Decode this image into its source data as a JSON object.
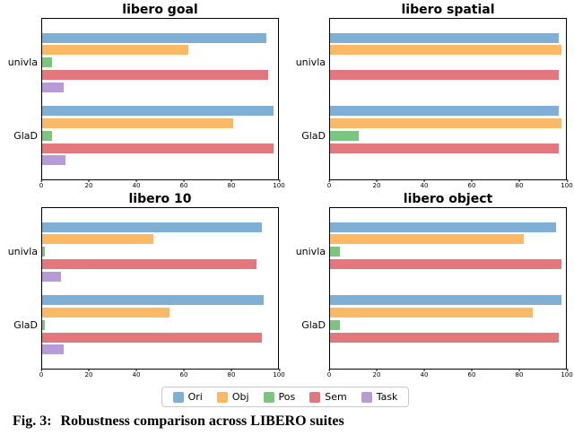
{
  "legend": {
    "entries": [
      {
        "label": "Ori",
        "color": "#7FAFD4"
      },
      {
        "label": "Obj",
        "color": "#FBB965"
      },
      {
        "label": "Pos",
        "color": "#7CC57E"
      },
      {
        "label": "Sem",
        "color": "#E2777D"
      },
      {
        "label": "Task",
        "color": "#B79BD8"
      }
    ]
  },
  "caption": {
    "fig_label": "Fig. 3:",
    "text": "Robustness comparison across LIBERO suites"
  },
  "chart_data": [
    {
      "type": "bar",
      "orientation": "horizontal",
      "title": "libero goal",
      "categories": [
        "univla",
        "GlaD"
      ],
      "series": [
        {
          "name": "Ori",
          "color": "#7FAFD4",
          "values": [
            95,
            98
          ]
        },
        {
          "name": "Obj",
          "color": "#FBB965",
          "values": [
            62,
            81
          ]
        },
        {
          "name": "Pos",
          "color": "#7CC57E",
          "values": [
            4,
            4
          ]
        },
        {
          "name": "Sem",
          "color": "#E2777D",
          "values": [
            96,
            98
          ]
        },
        {
          "name": "Task",
          "color": "#B79BD8",
          "values": [
            9,
            10
          ]
        }
      ],
      "xlim": [
        0,
        100
      ],
      "xticks": [
        0,
        20,
        40,
        60,
        80,
        100
      ]
    },
    {
      "type": "bar",
      "orientation": "horizontal",
      "title": "libero spatial",
      "categories": [
        "univla",
        "GlaD"
      ],
      "series": [
        {
          "name": "Ori",
          "color": "#7FAFD4",
          "values": [
            97,
            97
          ]
        },
        {
          "name": "Obj",
          "color": "#FBB965",
          "values": [
            98,
            98
          ]
        },
        {
          "name": "Pos",
          "color": "#7CC57E",
          "values": [
            0,
            12
          ]
        },
        {
          "name": "Sem",
          "color": "#E2777D",
          "values": [
            97,
            97
          ]
        },
        {
          "name": "Task",
          "color": "#B79BD8",
          "values": [
            0,
            0
          ]
        }
      ],
      "xlim": [
        0,
        100
      ],
      "xticks": [
        0,
        20,
        40,
        60,
        80,
        100
      ]
    },
    {
      "type": "bar",
      "orientation": "horizontal",
      "title": "libero 10",
      "categories": [
        "univla",
        "GlaD"
      ],
      "series": [
        {
          "name": "Ori",
          "color": "#7FAFD4",
          "values": [
            93,
            94
          ]
        },
        {
          "name": "Obj",
          "color": "#FBB965",
          "values": [
            47,
            54
          ]
        },
        {
          "name": "Pos",
          "color": "#7CC57E",
          "values": [
            1,
            1
          ]
        },
        {
          "name": "Sem",
          "color": "#E2777D",
          "values": [
            91,
            93
          ]
        },
        {
          "name": "Task",
          "color": "#B79BD8",
          "values": [
            8,
            9
          ]
        }
      ],
      "xlim": [
        0,
        100
      ],
      "xticks": [
        0,
        20,
        40,
        60,
        80,
        100
      ]
    },
    {
      "type": "bar",
      "orientation": "horizontal",
      "title": "libero object",
      "categories": [
        "univla",
        "GlaD"
      ],
      "series": [
        {
          "name": "Ori",
          "color": "#7FAFD4",
          "values": [
            96,
            98
          ]
        },
        {
          "name": "Obj",
          "color": "#FBB965",
          "values": [
            82,
            86
          ]
        },
        {
          "name": "Pos",
          "color": "#7CC57E",
          "values": [
            4,
            4
          ]
        },
        {
          "name": "Sem",
          "color": "#E2777D",
          "values": [
            98,
            97
          ]
        },
        {
          "name": "Task",
          "color": "#B79BD8",
          "values": [
            0,
            0
          ]
        }
      ],
      "xlim": [
        0,
        100
      ],
      "xticks": [
        0,
        20,
        40,
        60,
        80,
        100
      ]
    }
  ]
}
